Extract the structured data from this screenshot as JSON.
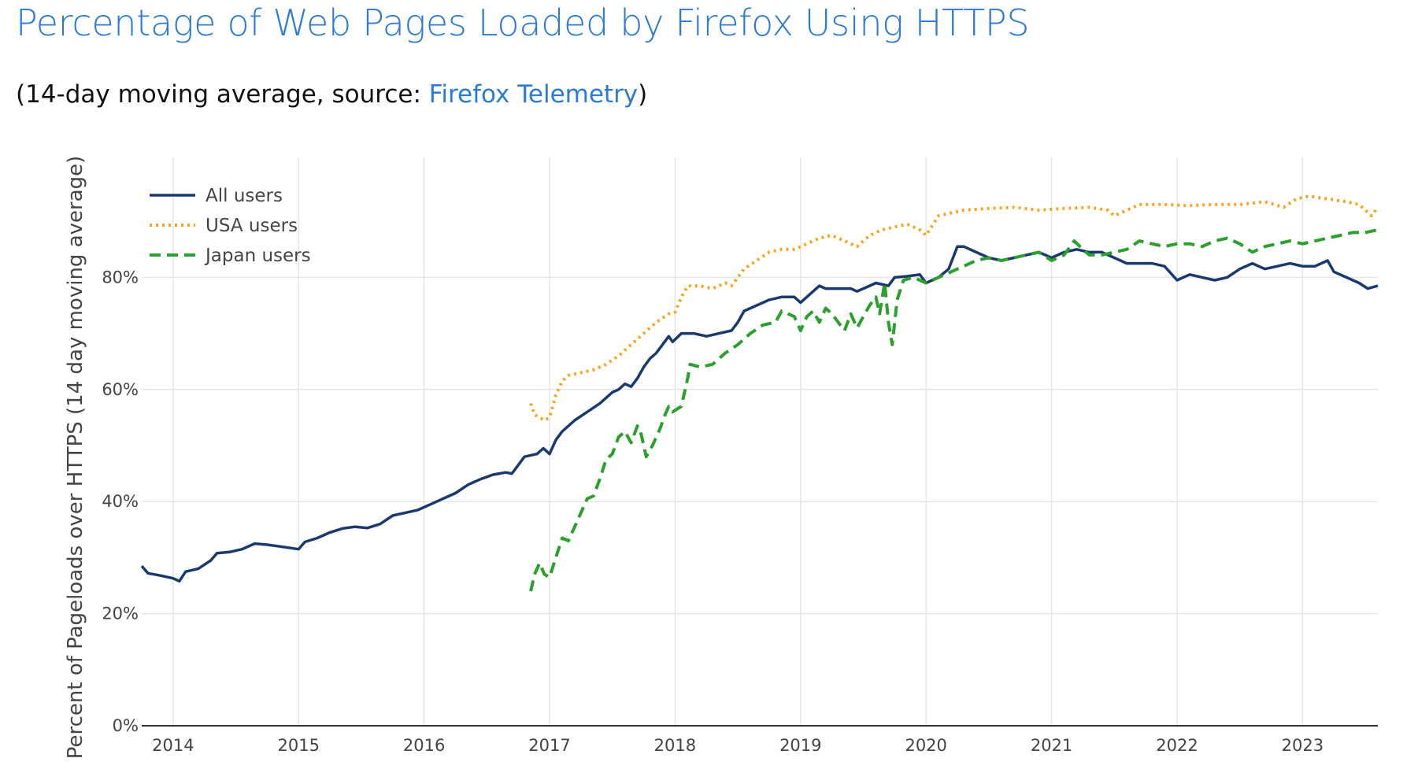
{
  "page": {
    "title": "Percentage of Web Pages Loaded by Firefox Using HTTPS",
    "subtitle_prefix": "(14-day moving average, source: ",
    "subtitle_link": "Firefox Telemetry",
    "subtitle_suffix": ")"
  },
  "chart_data": {
    "type": "line",
    "title": "",
    "xlabel": "",
    "ylabel": "Percent of Pageloads over HTTPS (14 day moving average)",
    "xlim": [
      2013.75,
      2023.6
    ],
    "ylim": [
      0,
      100
    ],
    "x_ticks": [
      2014,
      2015,
      2016,
      2017,
      2018,
      2019,
      2020,
      2021,
      2022,
      2023
    ],
    "x_tick_labels": [
      "2014",
      "2015",
      "2016",
      "2017",
      "2018",
      "2019",
      "2020",
      "2021",
      "2022",
      "2023"
    ],
    "y_ticks": [
      0,
      20,
      40,
      60,
      80
    ],
    "y_tick_labels": [
      "0%",
      "20%",
      "40%",
      "60%",
      "80%"
    ],
    "grid": true,
    "legend_position": "top-left",
    "series": [
      {
        "name": "All users",
        "color": "#1a3a6e",
        "style": "solid",
        "points": [
          [
            2013.75,
            28.5
          ],
          [
            2013.8,
            27.2
          ],
          [
            2013.9,
            26.8
          ],
          [
            2014.0,
            26.3
          ],
          [
            2014.05,
            25.8
          ],
          [
            2014.1,
            27.5
          ],
          [
            2014.2,
            28.0
          ],
          [
            2014.3,
            29.5
          ],
          [
            2014.35,
            30.8
          ],
          [
            2014.45,
            31.0
          ],
          [
            2014.55,
            31.5
          ],
          [
            2014.65,
            32.5
          ],
          [
            2014.75,
            32.3
          ],
          [
            2014.85,
            32.0
          ],
          [
            2015.0,
            31.5
          ],
          [
            2015.05,
            32.8
          ],
          [
            2015.15,
            33.5
          ],
          [
            2015.25,
            34.5
          ],
          [
            2015.35,
            35.2
          ],
          [
            2015.45,
            35.5
          ],
          [
            2015.55,
            35.3
          ],
          [
            2015.65,
            36.0
          ],
          [
            2015.75,
            37.5
          ],
          [
            2015.85,
            38.0
          ],
          [
            2015.95,
            38.5
          ],
          [
            2016.05,
            39.5
          ],
          [
            2016.15,
            40.5
          ],
          [
            2016.25,
            41.5
          ],
          [
            2016.35,
            43.0
          ],
          [
            2016.45,
            44.0
          ],
          [
            2016.55,
            44.8
          ],
          [
            2016.65,
            45.2
          ],
          [
            2016.7,
            45.0
          ],
          [
            2016.75,
            46.5
          ],
          [
            2016.8,
            48.0
          ],
          [
            2016.9,
            48.5
          ],
          [
            2016.95,
            49.5
          ],
          [
            2017.0,
            48.5
          ],
          [
            2017.05,
            51.0
          ],
          [
            2017.1,
            52.5
          ],
          [
            2017.2,
            54.5
          ],
          [
            2017.3,
            56.0
          ],
          [
            2017.4,
            57.5
          ],
          [
            2017.5,
            59.5
          ],
          [
            2017.55,
            60.0
          ],
          [
            2017.6,
            61.0
          ],
          [
            2017.65,
            60.5
          ],
          [
            2017.7,
            62.0
          ],
          [
            2017.75,
            64.0
          ],
          [
            2017.8,
            65.5
          ],
          [
            2017.85,
            66.5
          ],
          [
            2017.9,
            68.0
          ],
          [
            2017.95,
            69.5
          ],
          [
            2017.98,
            68.5
          ],
          [
            2018.05,
            70.0
          ],
          [
            2018.15,
            70.0
          ],
          [
            2018.25,
            69.5
          ],
          [
            2018.35,
            70.0
          ],
          [
            2018.45,
            70.5
          ],
          [
            2018.5,
            72.0
          ],
          [
            2018.55,
            74.0
          ],
          [
            2018.65,
            75.0
          ],
          [
            2018.75,
            76.0
          ],
          [
            2018.85,
            76.5
          ],
          [
            2018.95,
            76.5
          ],
          [
            2019.0,
            75.5
          ],
          [
            2019.1,
            77.5
          ],
          [
            2019.15,
            78.5
          ],
          [
            2019.2,
            78.0
          ],
          [
            2019.3,
            78.0
          ],
          [
            2019.4,
            78.0
          ],
          [
            2019.45,
            77.5
          ],
          [
            2019.55,
            78.5
          ],
          [
            2019.6,
            79.0
          ],
          [
            2019.7,
            78.5
          ],
          [
            2019.75,
            80.0
          ],
          [
            2019.85,
            80.2
          ],
          [
            2019.95,
            80.5
          ],
          [
            2020.0,
            79.0
          ],
          [
            2020.1,
            80.0
          ],
          [
            2020.18,
            81.5
          ],
          [
            2020.25,
            85.5
          ],
          [
            2020.3,
            85.5
          ],
          [
            2020.4,
            84.5
          ],
          [
            2020.5,
            83.5
          ],
          [
            2020.6,
            83.0
          ],
          [
            2020.7,
            83.5
          ],
          [
            2020.8,
            84.0
          ],
          [
            2020.9,
            84.5
          ],
          [
            2021.0,
            83.5
          ],
          [
            2021.1,
            84.5
          ],
          [
            2021.2,
            85.0
          ],
          [
            2021.3,
            84.5
          ],
          [
            2021.4,
            84.5
          ],
          [
            2021.5,
            83.5
          ],
          [
            2021.6,
            82.5
          ],
          [
            2021.7,
            82.5
          ],
          [
            2021.8,
            82.5
          ],
          [
            2021.9,
            82.0
          ],
          [
            2022.0,
            79.5
          ],
          [
            2022.1,
            80.5
          ],
          [
            2022.2,
            80.0
          ],
          [
            2022.3,
            79.5
          ],
          [
            2022.4,
            80.0
          ],
          [
            2022.5,
            81.5
          ],
          [
            2022.6,
            82.5
          ],
          [
            2022.7,
            81.5
          ],
          [
            2022.8,
            82.0
          ],
          [
            2022.9,
            82.5
          ],
          [
            2023.0,
            82.0
          ],
          [
            2023.1,
            82.0
          ],
          [
            2023.2,
            83.0
          ],
          [
            2023.25,
            81.0
          ],
          [
            2023.35,
            80.0
          ],
          [
            2023.45,
            79.0
          ],
          [
            2023.52,
            78.0
          ],
          [
            2023.6,
            78.5
          ]
        ]
      },
      {
        "name": "USA users",
        "color": "#f5a623",
        "style": "dotted",
        "points": [
          [
            2016.85,
            57.5
          ],
          [
            2016.88,
            55.5
          ],
          [
            2016.92,
            55.0
          ],
          [
            2016.96,
            54.5
          ],
          [
            2017.0,
            55.0
          ],
          [
            2017.05,
            59.0
          ],
          [
            2017.1,
            61.5
          ],
          [
            2017.15,
            62.5
          ],
          [
            2017.25,
            63.0
          ],
          [
            2017.35,
            63.5
          ],
          [
            2017.45,
            64.5
          ],
          [
            2017.55,
            66.0
          ],
          [
            2017.65,
            68.0
          ],
          [
            2017.75,
            70.0
          ],
          [
            2017.85,
            72.0
          ],
          [
            2017.95,
            73.5
          ],
          [
            2018.0,
            73.8
          ],
          [
            2018.05,
            76.5
          ],
          [
            2018.1,
            78.5
          ],
          [
            2018.2,
            78.5
          ],
          [
            2018.3,
            78.0
          ],
          [
            2018.4,
            79.0
          ],
          [
            2018.45,
            78.5
          ],
          [
            2018.55,
            81.5
          ],
          [
            2018.65,
            83.0
          ],
          [
            2018.75,
            84.5
          ],
          [
            2018.85,
            85.0
          ],
          [
            2018.95,
            85.0
          ],
          [
            2019.05,
            86.0
          ],
          [
            2019.15,
            87.0
          ],
          [
            2019.25,
            87.5
          ],
          [
            2019.35,
            86.5
          ],
          [
            2019.45,
            85.5
          ],
          [
            2019.55,
            87.5
          ],
          [
            2019.65,
            88.5
          ],
          [
            2019.75,
            89.0
          ],
          [
            2019.85,
            89.5
          ],
          [
            2019.95,
            88.5
          ],
          [
            2020.0,
            87.5
          ],
          [
            2020.1,
            91.0
          ],
          [
            2020.2,
            91.5
          ],
          [
            2020.3,
            92.0
          ],
          [
            2020.5,
            92.3
          ],
          [
            2020.7,
            92.5
          ],
          [
            2020.9,
            92.0
          ],
          [
            2021.1,
            92.3
          ],
          [
            2021.3,
            92.5
          ],
          [
            2021.45,
            92.0
          ],
          [
            2021.5,
            91.0
          ],
          [
            2021.6,
            92.0
          ],
          [
            2021.7,
            93.0
          ],
          [
            2021.9,
            93.0
          ],
          [
            2022.1,
            92.8
          ],
          [
            2022.3,
            93.0
          ],
          [
            2022.5,
            93.0
          ],
          [
            2022.7,
            93.5
          ],
          [
            2022.85,
            92.5
          ],
          [
            2022.95,
            94.0
          ],
          [
            2023.05,
            94.5
          ],
          [
            2023.2,
            94.0
          ],
          [
            2023.35,
            93.5
          ],
          [
            2023.45,
            93.0
          ],
          [
            2023.5,
            92.0
          ],
          [
            2023.55,
            91.0
          ],
          [
            2023.6,
            92.5
          ]
        ]
      },
      {
        "name": "Japan users",
        "color": "#2ca02c",
        "style": "dashed",
        "points": [
          [
            2016.85,
            24.0
          ],
          [
            2016.88,
            27.0
          ],
          [
            2016.92,
            29.0
          ],
          [
            2016.96,
            27.0
          ],
          [
            2017.0,
            26.5
          ],
          [
            2017.05,
            30.0
          ],
          [
            2017.1,
            33.5
          ],
          [
            2017.15,
            33.0
          ],
          [
            2017.2,
            35.5
          ],
          [
            2017.25,
            38.0
          ],
          [
            2017.3,
            40.5
          ],
          [
            2017.35,
            41.0
          ],
          [
            2017.4,
            44.0
          ],
          [
            2017.45,
            47.5
          ],
          [
            2017.5,
            48.5
          ],
          [
            2017.55,
            51.5
          ],
          [
            2017.6,
            52.5
          ],
          [
            2017.65,
            50.5
          ],
          [
            2017.7,
            53.5
          ],
          [
            2017.73,
            52.0
          ],
          [
            2017.77,
            48.0
          ],
          [
            2017.82,
            50.0
          ],
          [
            2017.88,
            53.0
          ],
          [
            2017.92,
            55.5
          ],
          [
            2017.95,
            57.0
          ],
          [
            2017.98,
            56.0
          ],
          [
            2018.05,
            57.0
          ],
          [
            2018.1,
            62.0
          ],
          [
            2018.12,
            64.5
          ],
          [
            2018.2,
            64.0
          ],
          [
            2018.3,
            64.5
          ],
          [
            2018.4,
            66.5
          ],
          [
            2018.5,
            68.0
          ],
          [
            2018.6,
            70.0
          ],
          [
            2018.7,
            71.5
          ],
          [
            2018.8,
            72.0
          ],
          [
            2018.85,
            74.0
          ],
          [
            2018.95,
            73.0
          ],
          [
            2019.0,
            70.5
          ],
          [
            2019.05,
            73.0
          ],
          [
            2019.1,
            74.0
          ],
          [
            2019.15,
            72.0
          ],
          [
            2019.2,
            74.5
          ],
          [
            2019.25,
            73.5
          ],
          [
            2019.3,
            72.0
          ],
          [
            2019.35,
            70.5
          ],
          [
            2019.4,
            73.5
          ],
          [
            2019.45,
            71.0
          ],
          [
            2019.5,
            73.0
          ],
          [
            2019.55,
            75.0
          ],
          [
            2019.6,
            76.5
          ],
          [
            2019.63,
            73.5
          ],
          [
            2019.67,
            79.0
          ],
          [
            2019.7,
            72.0
          ],
          [
            2019.73,
            68.0
          ],
          [
            2019.77,
            76.0
          ],
          [
            2019.82,
            79.5
          ],
          [
            2019.9,
            80.0
          ],
          [
            2020.0,
            79.0
          ],
          [
            2020.1,
            80.0
          ],
          [
            2020.2,
            81.0
          ],
          [
            2020.3,
            82.0
          ],
          [
            2020.4,
            83.0
          ],
          [
            2020.5,
            83.5
          ],
          [
            2020.6,
            83.0
          ],
          [
            2020.7,
            83.5
          ],
          [
            2020.8,
            84.0
          ],
          [
            2020.9,
            84.5
          ],
          [
            2021.0,
            83.0
          ],
          [
            2021.1,
            84.0
          ],
          [
            2021.18,
            86.5
          ],
          [
            2021.25,
            85.0
          ],
          [
            2021.3,
            84.0
          ],
          [
            2021.4,
            84.0
          ],
          [
            2021.5,
            84.5
          ],
          [
            2021.6,
            85.0
          ],
          [
            2021.7,
            86.5
          ],
          [
            2021.8,
            86.0
          ],
          [
            2021.9,
            85.5
          ],
          [
            2022.0,
            86.0
          ],
          [
            2022.1,
            86.0
          ],
          [
            2022.2,
            85.5
          ],
          [
            2022.3,
            86.5
          ],
          [
            2022.4,
            87.0
          ],
          [
            2022.5,
            86.0
          ],
          [
            2022.6,
            84.5
          ],
          [
            2022.7,
            85.5
          ],
          [
            2022.8,
            86.0
          ],
          [
            2022.9,
            86.5
          ],
          [
            2023.0,
            86.0
          ],
          [
            2023.1,
            86.5
          ],
          [
            2023.2,
            87.0
          ],
          [
            2023.3,
            87.5
          ],
          [
            2023.4,
            88.0
          ],
          [
            2023.5,
            88.0
          ],
          [
            2023.6,
            88.5
          ]
        ]
      }
    ]
  }
}
